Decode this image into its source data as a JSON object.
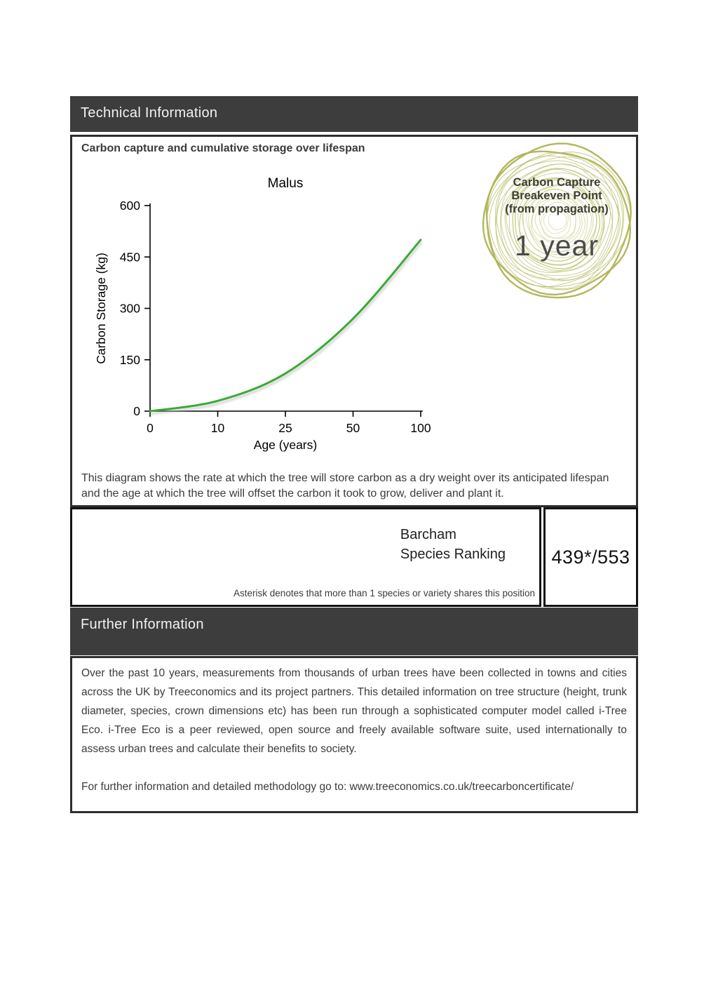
{
  "sections": {
    "technical": {
      "title": "Technical Information"
    },
    "chart_section": {
      "subtitle": "Carbon capture and cumulative storage over lifespan",
      "description": "This diagram shows the rate at which the tree will store carbon as a dry weight over its anticipated lifespan and the age at which the tree will offset the carbon it took to grow, deliver and plant it."
    },
    "breakeven_badge": {
      "label_lines": [
        "Carbon Capture",
        "Breakeven Point",
        "(from propagation)"
      ],
      "value": "1 year",
      "ring_color_outer": "#aeb352",
      "ring_color_inner": "#d9dba4"
    },
    "ranking": {
      "label_line1": "Barcham",
      "label_line2": "Species Ranking",
      "value": "439*/553",
      "note": "Asterisk denotes that more than 1 species or variety shares this position"
    },
    "further": {
      "title": "Further Information",
      "paragraph": "Over the past 10 years, measurements from thousands of urban trees have been collected in towns and cities across the UK by Treeconomics and its project partners. This detailed information on tree structure (height, trunk diameter, species, crown dimensions etc) has been run through a sophisticated computer model called i-Tree Eco. i-Tree Eco is a peer reviewed, open source and freely available software suite, used internationally to assess urban trees and calculate their benefits to society.",
      "link_line": "For further information and detailed methodology go to: www.treeconomics.co.uk/treecarboncertificate/"
    }
  },
  "chart_data": {
    "type": "line",
    "title": "Malus",
    "xlabel": "Age (years)",
    "ylabel": "Carbon Storage (kg)",
    "x_ticks": [
      0,
      10,
      25,
      50,
      100
    ],
    "y_ticks": [
      0,
      150,
      300,
      450,
      600
    ],
    "x": [
      0,
      10,
      25,
      50,
      100
    ],
    "y": [
      0,
      30,
      110,
      270,
      500
    ],
    "ylim": [
      0,
      600
    ],
    "x_scale": "equal-tick-spacing",
    "grid": false,
    "legend": false,
    "line_color": "#3aaa35",
    "axis_color": "#000000"
  },
  "colors": {
    "header_bg": "#3d3d3d",
    "header_text": "#f2f2f2",
    "box_border": "#2e2e2e",
    "body_text": "#3b3b3b"
  }
}
